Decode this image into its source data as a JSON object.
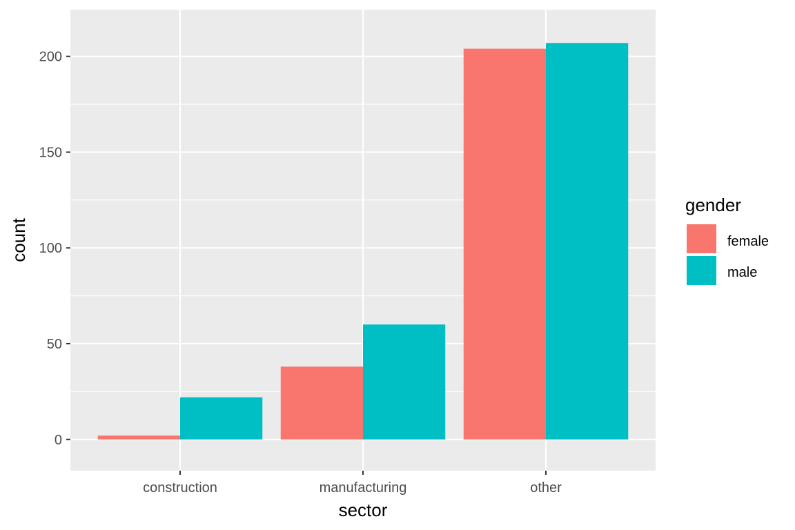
{
  "chart_data": {
    "type": "bar",
    "categories": [
      "construction",
      "manufacturing",
      "other"
    ],
    "series": [
      {
        "name": "female",
        "color": "#F8766D",
        "values": [
          2,
          38,
          204
        ]
      },
      {
        "name": "male",
        "color": "#00BFC4",
        "values": [
          22,
          60,
          207
        ]
      }
    ],
    "xlabel": "sector",
    "ylabel": "count",
    "ylim": [
      -16.3,
      224.4
    ],
    "yticks": [
      0,
      50,
      100,
      150,
      200
    ],
    "grid": true,
    "legend": {
      "title": "gender",
      "position": "right"
    },
    "panel_background": "#EBEBEB",
    "grid_color": "#FFFFFF"
  }
}
